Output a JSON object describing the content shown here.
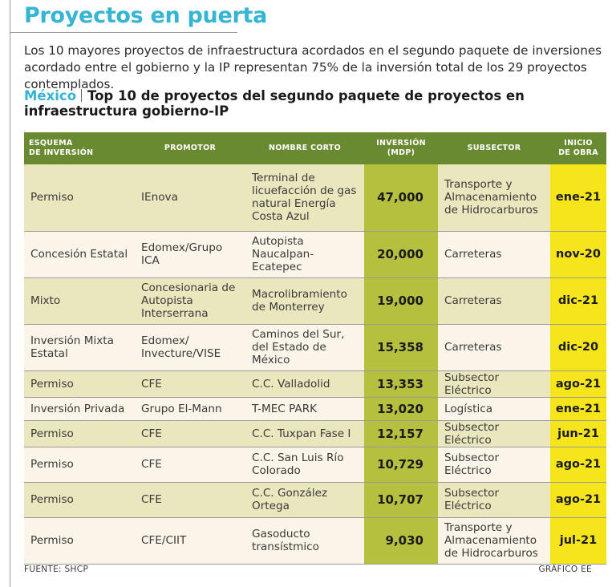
{
  "title": "Proyectos en puerta",
  "intro": "Los 10 mayores proyectos de infraestructura acordados en el segundo paquete de inversiones acordado entre el gobierno y la IP representan 75% de la inversión total de los 29 proyectos contemplados.",
  "subtitle": {
    "country": "México",
    "text": "Top 10 de proyectos del segundo paquete de proyectos en infraestructura gobierno-IP"
  },
  "table": {
    "headers": {
      "esquema": "ESQUEMA\nDE INVERSIÓN",
      "promotor": "PROMOTOR",
      "nombre": "NOMBRE CORTO",
      "inversion": "INVERSIÓN\n(MDP)",
      "subsector": "SUBSECTOR",
      "inicio": "INICIO\nDE OBRA"
    },
    "rows": [
      {
        "esquema": "Permiso",
        "promotor": "IEnova",
        "nombre": "Terminal de licuefacción de gas natural Energía Costa Azul",
        "inversion": "47,000",
        "subsector": "Transporte y Almacenamiento de Hidrocarburos",
        "inicio": "ene-21"
      },
      {
        "esquema": "Concesión Estatal",
        "promotor": "Edomex/Grupo ICA",
        "nombre": "Autopista Naucalpan-Ecatepec",
        "inversion": "20,000",
        "subsector": "Carreteras",
        "inicio": "nov-20"
      },
      {
        "esquema": "Mixto",
        "promotor": "Concesionaria de Autopista Interserrana",
        "nombre": "Macrolibramiento de Monterrey",
        "inversion": "19,000",
        "subsector": "Carreteras",
        "inicio": "dic-21"
      },
      {
        "esquema": "Inversión Mixta Estatal",
        "promotor": "Edomex/ Invecture/VISE",
        "nombre": "Caminos del Sur, del Estado de México",
        "inversion": "15,358",
        "subsector": "Carreteras",
        "inicio": "dic-20"
      },
      {
        "esquema": "Permiso",
        "promotor": "CFE",
        "nombre": "C.C. Valladolid",
        "inversion": "13,353",
        "subsector": "Subsector Eléctrico",
        "inicio": "ago-21"
      },
      {
        "esquema": "Inversión Privada",
        "promotor": "Grupo El-Mann",
        "nombre": "T-MEC PARK",
        "inversion": "13,020",
        "subsector": "Logística",
        "inicio": "ene-21"
      },
      {
        "esquema": "Permiso",
        "promotor": "CFE",
        "nombre": "C.C. Tuxpan Fase I",
        "inversion": "12,157",
        "subsector": "Subsector Eléctrico",
        "inicio": "jun-21"
      },
      {
        "esquema": "Permiso",
        "promotor": "CFE",
        "nombre": "C.C. San Luis Río Colorado",
        "inversion": "10,729",
        "subsector": "Subsector Eléctrico",
        "inicio": "ago-21"
      },
      {
        "esquema": "Permiso",
        "promotor": "CFE",
        "nombre": "C.C. González Ortega",
        "inversion": "10,707",
        "subsector": "Subsector Eléctrico",
        "inicio": "ago-21"
      },
      {
        "esquema": "Permiso",
        "promotor": "CFE/CIIT",
        "nombre": "Gasoducto transístmico",
        "inversion": "9,030",
        "subsector": "Transporte y Almacenamiento de Hidrocarburos",
        "inicio": "jul-21"
      }
    ]
  },
  "source": "FUENTE: SHCP",
  "credit": "GRÁFICO EE"
}
